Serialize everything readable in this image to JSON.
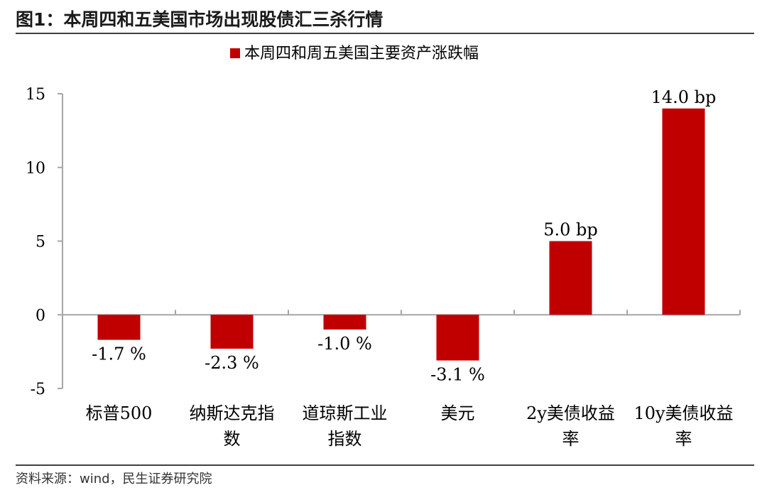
{
  "figure": {
    "title": "图1：本周四和五美国市场出现股债汇三杀行情",
    "source": "资料来源：wind，民生证券研究院"
  },
  "colors": {
    "bar": "#c00000",
    "axis": "#a6a6a6",
    "text": "#000000"
  },
  "chart_data": {
    "type": "bar",
    "legend": {
      "position": "top-center"
    },
    "categories": [
      [
        "标普500"
      ],
      [
        "纳斯达克指",
        "数"
      ],
      [
        "道琼斯工业",
        "指数"
      ],
      [
        "美元"
      ],
      [
        "2y美债收益",
        "率"
      ],
      [
        "10y美债收益",
        "率"
      ]
    ],
    "series": [
      {
        "name": "本周四和周五美国主要资产涨跌幅",
        "values": [
          -1.7,
          -2.3,
          -1.0,
          -3.1,
          5.0,
          14.0
        ],
        "data_labels": [
          "-1.7 %",
          "-2.3 %",
          "-1.0 %",
          "-3.1 %",
          "5.0 bp",
          "14.0 bp"
        ]
      }
    ],
    "ylim": [
      -5,
      15
    ],
    "yticks": [
      -5,
      0,
      5,
      10,
      15
    ],
    "grid": false
  }
}
